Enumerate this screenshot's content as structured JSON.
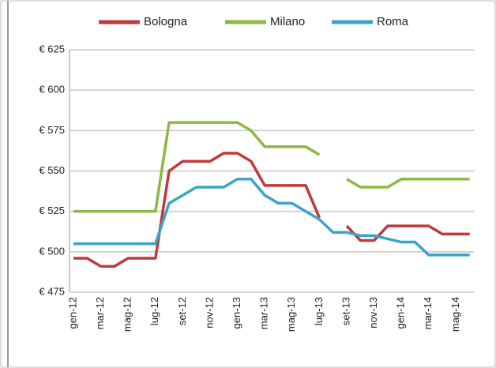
{
  "chart_data": {
    "type": "line",
    "categories": [
      "gen-12",
      null,
      "mar-12",
      null,
      "mag-12",
      null,
      "lug-12",
      null,
      "set-12",
      null,
      "nov-12",
      null,
      "gen-13",
      null,
      "mar-13",
      null,
      "mag-13",
      null,
      "lug-13",
      null,
      "set-13",
      null,
      "nov-13",
      null,
      "gen-14",
      null,
      "mar-14",
      null,
      "mag-14",
      null
    ],
    "series": [
      {
        "name": "Bologna",
        "color": "#c0393b",
        "values": [
          496,
          496,
          491,
          491,
          496,
          496,
          496,
          550,
          556,
          556,
          556,
          561,
          561,
          556,
          541,
          541,
          541,
          541,
          521,
          null,
          516,
          507,
          507,
          516,
          516,
          516,
          516,
          511,
          511,
          511
        ]
      },
      {
        "name": "Milano",
        "color": "#8db843",
        "values": [
          525,
          525,
          525,
          525,
          525,
          525,
          525,
          580,
          580,
          580,
          580,
          580,
          580,
          575,
          565,
          565,
          565,
          565,
          560,
          null,
          545,
          540,
          540,
          540,
          545,
          545,
          545,
          545,
          545,
          545
        ]
      },
      {
        "name": "Roma",
        "color": "#3aa4c9",
        "values": [
          505,
          505,
          505,
          505,
          505,
          505,
          505,
          530,
          535,
          540,
          540,
          540,
          545,
          545,
          535,
          530,
          530,
          525,
          520,
          512,
          512,
          510,
          510,
          508,
          506,
          506,
          498,
          498,
          498,
          498
        ]
      }
    ],
    "ylim": [
      475,
      625
    ],
    "yticks": [
      {
        "value": 475,
        "label": "€ 475"
      },
      {
        "value": 500,
        "label": "€ 500"
      },
      {
        "value": 525,
        "label": "€ 525"
      },
      {
        "value": 550,
        "label": "€ 550"
      },
      {
        "value": 575,
        "label": "€ 575"
      },
      {
        "value": 600,
        "label": "€ 600"
      },
      {
        "value": 625,
        "label": "€ 625"
      }
    ],
    "grid": true
  }
}
